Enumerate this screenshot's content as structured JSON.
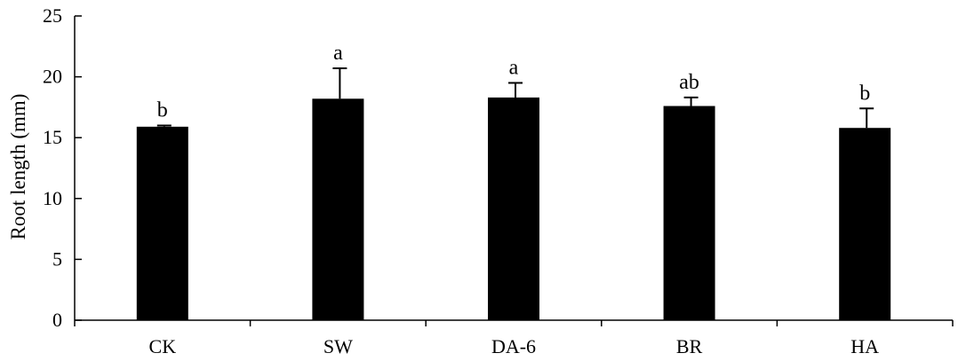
{
  "chart_data": {
    "type": "bar",
    "title": "",
    "xlabel": "",
    "ylabel": "Root   length (mm)",
    "ylim": [
      0,
      25
    ],
    "yticks": [
      0,
      5,
      10,
      15,
      20,
      25
    ],
    "categories": [
      "CK",
      "SW",
      "DA-6",
      "BR",
      "HA"
    ],
    "values": [
      15.9,
      18.2,
      18.3,
      17.6,
      15.8
    ],
    "errors": [
      0.1,
      2.5,
      1.2,
      0.7,
      1.6
    ],
    "significance": [
      "b",
      "a",
      "a",
      "ab",
      "b"
    ],
    "grid": false,
    "bar_color": "#000000"
  }
}
